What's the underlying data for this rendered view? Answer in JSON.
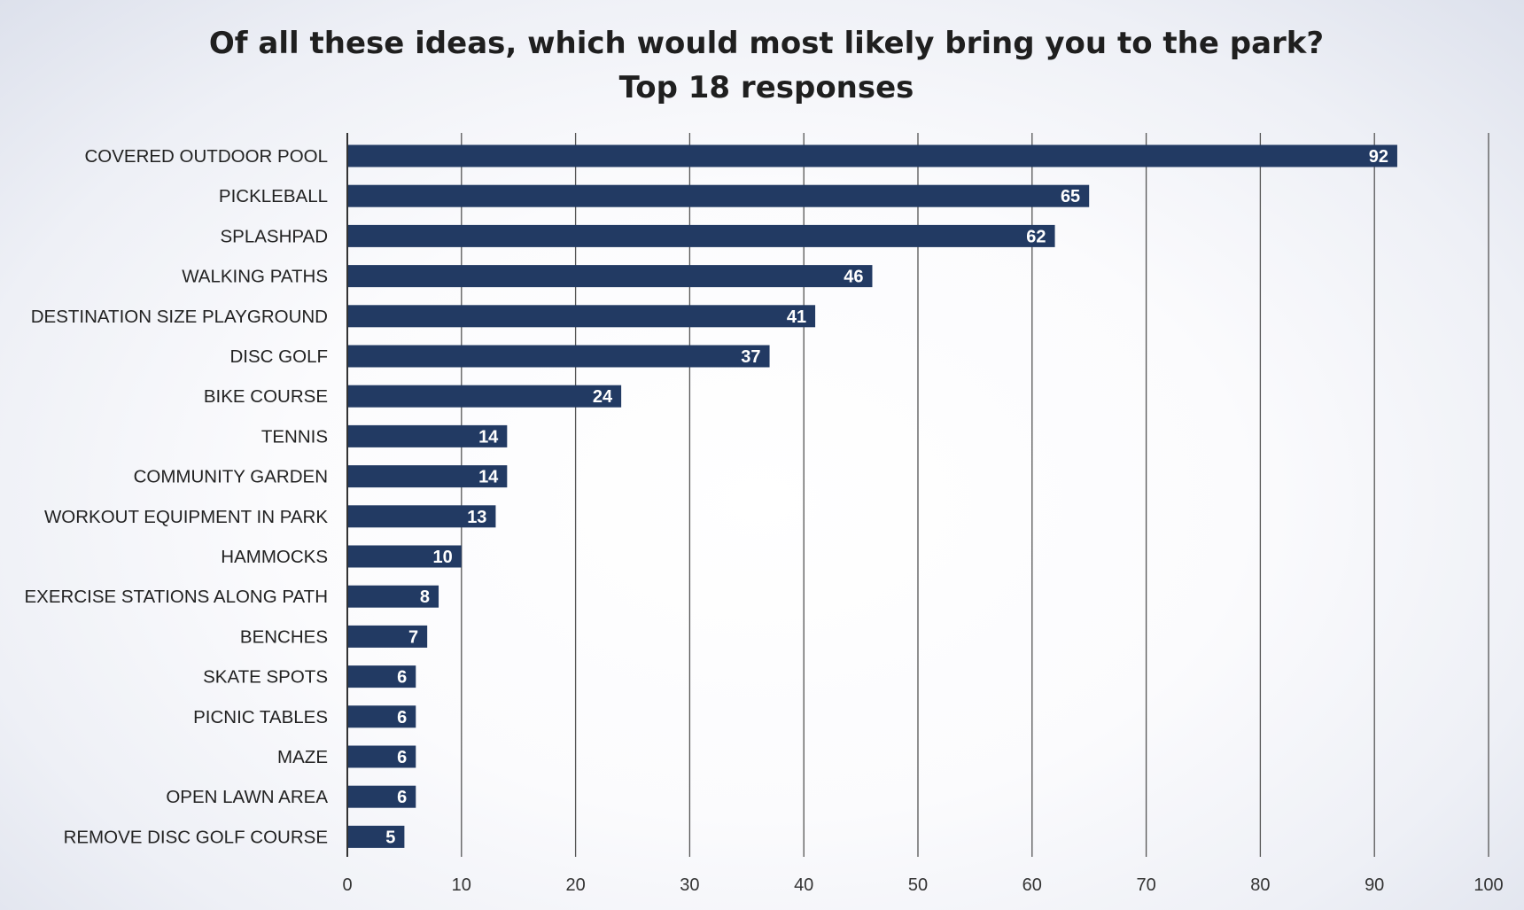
{
  "chart_data": {
    "type": "bar",
    "orientation": "horizontal",
    "title": "Of all these ideas, which would most likely bring you to the park?",
    "subtitle": "Top 18 responses",
    "categories": [
      "COVERED OUTDOOR POOL",
      "PICKLEBALL",
      "SPLASHPAD",
      "WALKING PATHS",
      "DESTINATION SIZE PLAYGROUND",
      "DISC GOLF",
      "BIKE COURSE",
      "TENNIS",
      "COMMUNITY GARDEN",
      "WORKOUT EQUIPMENT IN PARK",
      "HAMMOCKS",
      "EXERCISE STATIONS ALONG PATH",
      "BENCHES",
      "SKATE SPOTS",
      "PICNIC TABLES",
      "MAZE",
      "OPEN LAWN AREA",
      "REMOVE DISC GOLF COURSE"
    ],
    "values": [
      92,
      65,
      62,
      46,
      41,
      37,
      24,
      14,
      14,
      13,
      10,
      8,
      7,
      6,
      6,
      6,
      6,
      5
    ],
    "xlim": [
      0,
      100
    ],
    "xticks": [
      0,
      10,
      20,
      30,
      40,
      50,
      60,
      70,
      80,
      90,
      100
    ],
    "data_labels": true,
    "grid": "vertical",
    "legend": "none",
    "colors": {
      "bar": "#223a63",
      "grid": "#555555",
      "label": "#ffffff"
    }
  }
}
